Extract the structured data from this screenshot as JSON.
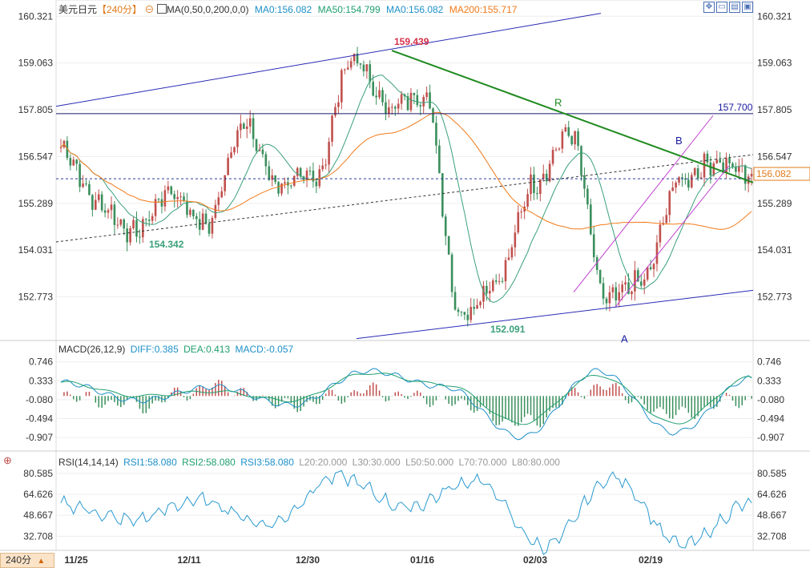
{
  "header": {
    "symbol": "美元日元",
    "period": "【240分】",
    "ma_label": "MA(0,50,0,200,0,0)",
    "ma0_a": "MA0:156.082",
    "ma50": "MA50:154.799",
    "ma0_b": "MA0:156.082",
    "ma200": "MA200:155.717"
  },
  "toolbar_icons": [
    "expand-icon",
    "restore-icon",
    "layout-icon",
    "window-icon"
  ],
  "macd_header": {
    "title": "MACD(26,12,9)",
    "diff": "DIFF:0.385",
    "dea": "DEA:0.413",
    "macd": "MACD:-0.057"
  },
  "rsi_header": {
    "title": "RSI(14,14,14)",
    "rsi1": "RSI1:58.080",
    "rsi2": "RSI2:58.080",
    "rsi3": "RSI3:58.080",
    "l20": "L20:20.000",
    "l30": "L30:30.000",
    "l50": "L50:50.000",
    "l70": "L70:70.000",
    "l80": "L80:80.000"
  },
  "period_selector": {
    "label": "240分",
    "arrow": "▲"
  },
  "colors": {
    "up": "#c0504d",
    "down": "#3a8f5c",
    "ma50": "#3aa07a",
    "ma200": "#f07a1a",
    "trend_green": "#1f8a1f",
    "channel_blue": "#2a2ab5",
    "magenta": "#c040d0",
    "diff": "#1e90c8",
    "dea": "#20a070",
    "rsi": "#2a9ad0",
    "price_label": "#e07a1a"
  },
  "chart_data": [
    {
      "type": "candlestick",
      "title": "美元日元 240分",
      "ylim": [
        151.6,
        160.5
      ],
      "y_ticks": [
        "160.321",
        "159.063",
        "157.805",
        "156.547",
        "155.289",
        "154.031",
        "152.773"
      ],
      "x_ticks": [
        "11/25",
        "12/11",
        "12/30",
        "01/16",
        "02/03",
        "02/19"
      ],
      "key_closes": [
        156.8,
        155.3,
        154.5,
        155.6,
        154.7,
        157.4,
        155.8,
        156.0,
        159.2,
        157.9,
        158.2,
        152.3,
        153.2,
        155.8,
        157.2,
        152.7,
        153.2,
        155.9,
        156.4,
        156.08
      ],
      "current_price": "156.082",
      "annotations": {
        "high": "159.439",
        "low_left": "154.342",
        "low_mid": "152.091",
        "resistance": "157.700",
        "label_R": "R",
        "label_B": "B",
        "label_A": "A"
      }
    },
    {
      "type": "macd",
      "ylim": [
        -1.15,
        0.95
      ],
      "y_ticks": [
        "0.746",
        "0.333",
        "-0.080",
        "-0.494",
        "-0.907"
      ],
      "key_diff": [
        0.3,
        -0.1,
        0.2,
        -0.2,
        0.55,
        0.2,
        -0.9,
        0.55,
        -0.8,
        0.39
      ],
      "key_dea": [
        0.3,
        0.0,
        0.1,
        -0.1,
        0.5,
        0.25,
        -0.6,
        0.45,
        -0.6,
        0.41
      ]
    },
    {
      "type": "rsi",
      "ylim": [
        22,
        86
      ],
      "y_ticks": [
        "80.585",
        "64.626",
        "48.667",
        "32.708"
      ],
      "key_values": [
        57,
        45,
        60,
        42,
        78,
        55,
        75,
        25,
        77,
        26,
        58
      ]
    }
  ]
}
